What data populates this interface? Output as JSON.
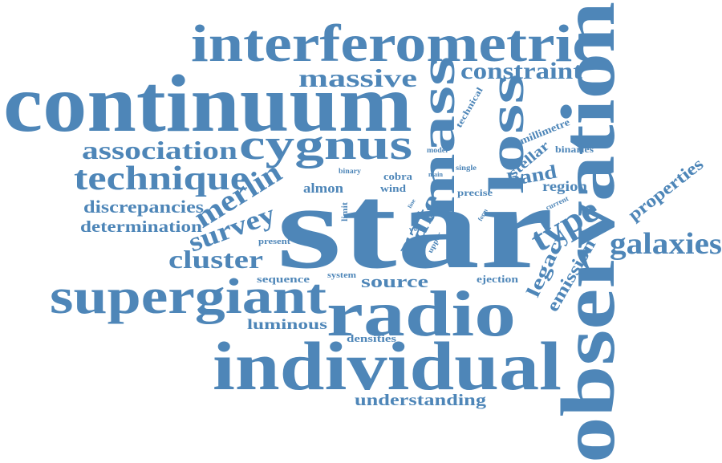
{
  "word_cloud": {
    "color": "#4e86b8",
    "words": [
      {
        "key": "star",
        "text": "star"
      },
      {
        "key": "observation",
        "text": "observation"
      },
      {
        "key": "continuum",
        "text": "continuum"
      },
      {
        "key": "individual",
        "text": "individual"
      },
      {
        "key": "interferometric",
        "text": "interferometric"
      },
      {
        "key": "radio",
        "text": "radio"
      },
      {
        "key": "supergiant",
        "text": "supergiant"
      },
      {
        "key": "mass",
        "text": "mass"
      },
      {
        "key": "loss",
        "text": "loss"
      },
      {
        "key": "cygnus",
        "text": "cygnus"
      },
      {
        "key": "technique",
        "text": "technique"
      },
      {
        "key": "association",
        "text": "association"
      },
      {
        "key": "massive",
        "text": "massive"
      },
      {
        "key": "constraint",
        "text": "constraint"
      },
      {
        "key": "galaxies",
        "text": "galaxies"
      },
      {
        "key": "type",
        "text": "type"
      },
      {
        "key": "merlin",
        "text": "merlin"
      },
      {
        "key": "survey",
        "text": "survey"
      },
      {
        "key": "cluster",
        "text": "cluster"
      },
      {
        "key": "rate",
        "text": "rate"
      },
      {
        "key": "legacy",
        "text": "legacy"
      },
      {
        "key": "emission",
        "text": "emission"
      },
      {
        "key": "discrepancies",
        "text": "discrepancies"
      },
      {
        "key": "determination",
        "text": "determination"
      },
      {
        "key": "source",
        "text": "source"
      },
      {
        "key": "luminous",
        "text": "luminous"
      },
      {
        "key": "understanding",
        "text": "understanding"
      },
      {
        "key": "band",
        "text": "band"
      },
      {
        "key": "region",
        "text": "region"
      },
      {
        "key": "properties",
        "text": "properties"
      },
      {
        "key": "stellar",
        "text": "stellar"
      },
      {
        "key": "almon",
        "text": "almon"
      },
      {
        "key": "sequence",
        "text": "sequence"
      },
      {
        "key": "ejection",
        "text": "ejection"
      },
      {
        "key": "densities",
        "text": "densities"
      },
      {
        "key": "millimetre",
        "text": "millimetre"
      },
      {
        "key": "binaries",
        "text": "binaries"
      },
      {
        "key": "technical",
        "text": "technical"
      },
      {
        "key": "wind",
        "text": "wind"
      },
      {
        "key": "cobra",
        "text": "cobra"
      },
      {
        "key": "precise",
        "text": "precise"
      },
      {
        "key": "limit",
        "text": "limit"
      },
      {
        "key": "present",
        "text": "present"
      },
      {
        "key": "system",
        "text": "system"
      },
      {
        "key": "upper",
        "text": "upper"
      },
      {
        "key": "proc",
        "text": "proc"
      },
      {
        "key": "aim",
        "text": "aim"
      },
      {
        "key": "work",
        "text": "work"
      },
      {
        "key": "binary",
        "text": "binary"
      },
      {
        "key": "model",
        "text": "model"
      },
      {
        "key": "main",
        "text": "main"
      },
      {
        "key": "single",
        "text": "single"
      },
      {
        "key": "current",
        "text": "current"
      },
      {
        "key": "form",
        "text": "form"
      },
      {
        "key": "line",
        "text": "line"
      }
    ]
  }
}
